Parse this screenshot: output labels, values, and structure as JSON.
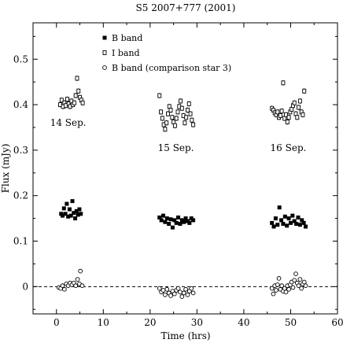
{
  "chart_data": {
    "type": "scatter",
    "title": "S5 2007+777 (2001)",
    "xlabel": "Time (hrs)",
    "ylabel": "Flux (mJy)",
    "xlim": [
      -5,
      60
    ],
    "ylim": [
      -0.06,
      0.58
    ],
    "xticks": [
      0,
      10,
      20,
      30,
      40,
      50,
      60
    ],
    "yticks": [
      0,
      0.1,
      0.2,
      0.3,
      0.4,
      0.5
    ],
    "grid": false,
    "legend_position": "top-left",
    "zero_line": {
      "y": 0,
      "style": "dashed"
    },
    "annotations": [
      {
        "text": "14 Sep.",
        "x": 2.5,
        "y": 0.36
      },
      {
        "text": "15 Sep.",
        "x": 25.5,
        "y": 0.305
      },
      {
        "text": "16 Sep.",
        "x": 49.5,
        "y": 0.305
      }
    ],
    "series": [
      {
        "name": "B band",
        "marker": "filled-square",
        "points": [
          [
            1.0,
            0.16
          ],
          [
            1.3,
            0.156
          ],
          [
            1.6,
            0.172
          ],
          [
            1.9,
            0.16
          ],
          [
            2.2,
            0.182
          ],
          [
            2.5,
            0.154
          ],
          [
            2.8,
            0.17
          ],
          [
            3.1,
            0.156
          ],
          [
            3.4,
            0.188
          ],
          [
            3.7,
            0.162
          ],
          [
            4.0,
            0.15
          ],
          [
            4.3,
            0.166
          ],
          [
            4.6,
            0.158
          ],
          [
            4.9,
            0.17
          ],
          [
            5.2,
            0.16
          ],
          [
            22.0,
            0.152
          ],
          [
            22.4,
            0.146
          ],
          [
            22.8,
            0.156
          ],
          [
            23.2,
            0.142
          ],
          [
            23.6,
            0.15
          ],
          [
            24.0,
            0.138
          ],
          [
            24.4,
            0.148
          ],
          [
            24.8,
            0.13
          ],
          [
            25.2,
            0.146
          ],
          [
            25.6,
            0.14
          ],
          [
            26.0,
            0.152
          ],
          [
            26.4,
            0.138
          ],
          [
            26.8,
            0.146
          ],
          [
            27.2,
            0.142
          ],
          [
            27.6,
            0.15
          ],
          [
            28.0,
            0.144
          ],
          [
            28.4,
            0.14
          ],
          [
            28.8,
            0.15
          ],
          [
            29.2,
            0.146
          ],
          [
            46.0,
            0.14
          ],
          [
            46.4,
            0.132
          ],
          [
            46.8,
            0.15
          ],
          [
            47.2,
            0.136
          ],
          [
            47.6,
            0.174
          ],
          [
            48.0,
            0.146
          ],
          [
            48.4,
            0.138
          ],
          [
            48.8,
            0.154
          ],
          [
            49.2,
            0.134
          ],
          [
            49.6,
            0.15
          ],
          [
            50.0,
            0.14
          ],
          [
            50.4,
            0.156
          ],
          [
            50.8,
            0.144
          ],
          [
            51.2,
            0.138
          ],
          [
            51.6,
            0.152
          ],
          [
            52.0,
            0.136
          ],
          [
            52.4,
            0.146
          ],
          [
            52.8,
            0.14
          ],
          [
            53.2,
            0.132
          ]
        ]
      },
      {
        "name": "I band",
        "marker": "open-square",
        "error_bar": 0.006,
        "points": [
          [
            0.8,
            0.4
          ],
          [
            1.1,
            0.41
          ],
          [
            1.4,
            0.396
          ],
          [
            1.7,
            0.404
          ],
          [
            2.0,
            0.398
          ],
          [
            2.3,
            0.412
          ],
          [
            2.6,
            0.402
          ],
          [
            2.9,
            0.396
          ],
          [
            3.2,
            0.408
          ],
          [
            3.5,
            0.4
          ],
          [
            3.8,
            0.404
          ],
          [
            4.1,
            0.42
          ],
          [
            4.4,
            0.458
          ],
          [
            4.7,
            0.43
          ],
          [
            5.0,
            0.416
          ],
          [
            5.3,
            0.41
          ],
          [
            5.6,
            0.404
          ],
          [
            22.0,
            0.42
          ],
          [
            22.3,
            0.384
          ],
          [
            22.6,
            0.37
          ],
          [
            22.9,
            0.356
          ],
          [
            23.2,
            0.346
          ],
          [
            23.5,
            0.36
          ],
          [
            23.8,
            0.38
          ],
          [
            24.1,
            0.396
          ],
          [
            24.4,
            0.388
          ],
          [
            24.7,
            0.372
          ],
          [
            25.0,
            0.362
          ],
          [
            25.3,
            0.354
          ],
          [
            25.6,
            0.37
          ],
          [
            25.9,
            0.384
          ],
          [
            26.2,
            0.396
          ],
          [
            26.5,
            0.408
          ],
          [
            26.8,
            0.392
          ],
          [
            27.1,
            0.376
          ],
          [
            27.4,
            0.36
          ],
          [
            27.7,
            0.372
          ],
          [
            28.0,
            0.388
          ],
          [
            28.3,
            0.402
          ],
          [
            28.6,
            0.38
          ],
          [
            28.9,
            0.366
          ],
          [
            29.2,
            0.356
          ],
          [
            46.0,
            0.392
          ],
          [
            46.3,
            0.388
          ],
          [
            46.6,
            0.382
          ],
          [
            46.9,
            0.378
          ],
          [
            47.2,
            0.384
          ],
          [
            47.5,
            0.372
          ],
          [
            47.8,
            0.376
          ],
          [
            48.1,
            0.386
          ],
          [
            48.4,
            0.448
          ],
          [
            48.7,
            0.37
          ],
          [
            49.0,
            0.378
          ],
          [
            49.3,
            0.362
          ],
          [
            49.6,
            0.372
          ],
          [
            49.9,
            0.384
          ],
          [
            50.2,
            0.39
          ],
          [
            50.5,
            0.398
          ],
          [
            50.8,
            0.404
          ],
          [
            51.1,
            0.38
          ],
          [
            51.4,
            0.372
          ],
          [
            51.7,
            0.394
          ],
          [
            52.0,
            0.408
          ],
          [
            52.3,
            0.384
          ],
          [
            52.6,
            0.378
          ],
          [
            52.9,
            0.43
          ]
        ]
      },
      {
        "name": "B band (comparison star 3)",
        "marker": "open-circle",
        "points": [
          [
            0.5,
            -0.002
          ],
          [
            0.9,
            -0.004
          ],
          [
            1.3,
            0.002
          ],
          [
            1.7,
            -0.006
          ],
          [
            2.1,
            0.006
          ],
          [
            2.5,
            0.002
          ],
          [
            2.9,
            0.008
          ],
          [
            3.3,
            0.004
          ],
          [
            3.7,
            0.008
          ],
          [
            4.1,
            0.002
          ],
          [
            4.5,
            0.016
          ],
          [
            4.9,
            0.006
          ],
          [
            5.1,
            0.034
          ],
          [
            5.5,
            0.002
          ],
          [
            22.0,
            -0.004
          ],
          [
            22.4,
            -0.012
          ],
          [
            22.8,
            -0.008
          ],
          [
            23.2,
            -0.018
          ],
          [
            23.6,
            -0.006
          ],
          [
            24.0,
            -0.014
          ],
          [
            24.4,
            -0.02
          ],
          [
            24.8,
            -0.01
          ],
          [
            25.2,
            -0.016
          ],
          [
            25.6,
            -0.008
          ],
          [
            26.0,
            -0.004
          ],
          [
            26.4,
            -0.012
          ],
          [
            26.8,
            -0.022
          ],
          [
            27.2,
            -0.014
          ],
          [
            27.6,
            -0.006
          ],
          [
            28.0,
            -0.018
          ],
          [
            28.4,
            -0.01
          ],
          [
            28.8,
            -0.004
          ],
          [
            29.2,
            -0.014
          ],
          [
            46.0,
            -0.004
          ],
          [
            46.3,
            -0.016
          ],
          [
            46.6,
            0.002
          ],
          [
            46.9,
            -0.008
          ],
          [
            47.2,
            0.004
          ],
          [
            47.5,
            0.018
          ],
          [
            47.8,
            -0.006
          ],
          [
            48.1,
            0.002
          ],
          [
            48.4,
            -0.01
          ],
          [
            48.7,
            -0.004
          ],
          [
            49.0,
            -0.012
          ],
          [
            49.3,
            0.002
          ],
          [
            49.6,
            -0.006
          ],
          [
            49.9,
            0.004
          ],
          [
            50.2,
            0.01
          ],
          [
            50.5,
            -0.002
          ],
          [
            50.8,
            0.014
          ],
          [
            51.1,
            0.028
          ],
          [
            51.4,
            0.008
          ],
          [
            51.7,
            0.002
          ],
          [
            52.0,
            0.016
          ],
          [
            52.3,
            -0.004
          ],
          [
            52.6,
            0.006
          ],
          [
            52.9,
            0.01
          ],
          [
            53.2,
            0.002
          ]
        ]
      }
    ]
  }
}
